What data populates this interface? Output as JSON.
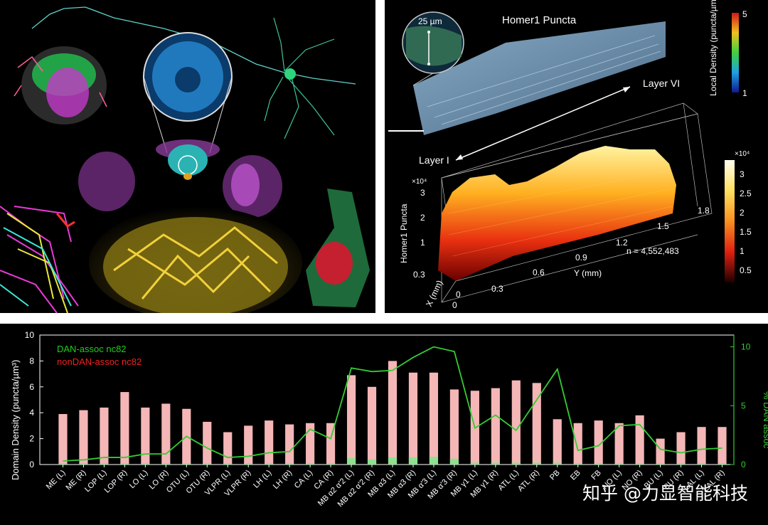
{
  "panel_b": {
    "scale_bar_label": "25 µm",
    "title": "Homer1 Puncta",
    "layer_vi": "Layer VI",
    "layer_i": "Layer I",
    "colorbar1_label": "Local Density (puncta/µm³)",
    "colorbar1_max": "5",
    "colorbar1_min": "1",
    "colorbar2_exp": "×10⁴",
    "colorbar2_ticks": [
      "3",
      "2.5",
      "2",
      "1.5",
      "1",
      "0.5"
    ],
    "z_label": "Homer1 Puncta",
    "z_exp": "×10⁴",
    "z_ticks": [
      "3",
      "2",
      "1"
    ],
    "x_label": "X (mm)",
    "x_ticks": [
      "0.3",
      "0"
    ],
    "y_label": "Y (mm)",
    "y_ticks": [
      "0",
      "0.3",
      "0.6",
      "0.9",
      "1.2",
      "1.5",
      "1.8"
    ],
    "n_label": "n = 4,552,483"
  },
  "watermark": "知乎 @力显智能科技",
  "chart_data": {
    "type": "bar",
    "ylabel": "Domain Density (puncta/µm³)",
    "y2label": "% DAN assoc",
    "ylim": [
      0,
      10
    ],
    "y_ticks": [
      0,
      2,
      4,
      6,
      8,
      10
    ],
    "y2lim": [
      0,
      11
    ],
    "y2_ticks": [
      0,
      5,
      10
    ],
    "legend_position": "top-left",
    "categories": [
      "ME (L)",
      "ME (R)",
      "LOP (L)",
      "LOP (R)",
      "LO (L)",
      "LO (R)",
      "OTU (L)",
      "OTU (R)",
      "VLPR (L)",
      "VLPR (R)",
      "LH (L)",
      "LH (R)",
      "CA (L)",
      "CA (R)",
      "MB α2 α'2 (L)",
      "MB α2 α'2 (R)",
      "MB α3 (L)",
      "MB α3 (R)",
      "MB α'3 (L)",
      "MB α'3 (R)",
      "MB γ1 (L)",
      "MB γ1 (R)",
      "ATL (L)",
      "ATL (R)",
      "PB",
      "EB",
      "FB",
      "NO (L)",
      "NO (R)",
      "BU (L)",
      "BU (R)",
      "LAL (L)",
      "LAL (R)"
    ],
    "series": [
      {
        "name": "nonDAN-assoc nc82",
        "color": "#f4b6b6",
        "type": "bar",
        "values": [
          3.9,
          4.2,
          4.4,
          5.6,
          4.4,
          4.7,
          4.3,
          3.3,
          2.5,
          3.0,
          3.4,
          3.1,
          3.2,
          3.2,
          6.9,
          6.0,
          8.0,
          7.1,
          7.1,
          5.8,
          5.7,
          5.9,
          6.5,
          6.3,
          3.5,
          3.2,
          3.4,
          3.2,
          3.8,
          2.0,
          2.5,
          2.9,
          2.9
        ]
      },
      {
        "name": "DAN-assoc nc82",
        "color": "#8fe08f",
        "type": "bar",
        "values": [
          0.1,
          0.1,
          0.1,
          0.1,
          0.1,
          0.1,
          0.1,
          0.1,
          0.1,
          0.1,
          0.1,
          0.1,
          0.1,
          0.1,
          0.5,
          0.4,
          0.55,
          0.55,
          0.6,
          0.45,
          0.15,
          0.15,
          0.15,
          0.15,
          0.15,
          0.1,
          0.1,
          0.1,
          0.1,
          0.1,
          0.1,
          0.1,
          0.1
        ]
      },
      {
        "name": "% DAN assoc",
        "color": "#33cc33",
        "type": "line",
        "axis": "right",
        "values": [
          0.3,
          0.4,
          0.6,
          0.6,
          0.9,
          0.9,
          2.4,
          1.4,
          0.6,
          0.7,
          1.0,
          1.1,
          3.0,
          2.2,
          8.2,
          7.9,
          8.0,
          9.1,
          10.0,
          9.6,
          3.1,
          4.2,
          2.9,
          5.5,
          8.1,
          1.2,
          1.6,
          3.3,
          3.4,
          1.3,
          1.0,
          1.3,
          1.4
        ]
      }
    ],
    "legend": [
      {
        "label": "DAN-assoc nc82",
        "color": "#22cc22"
      },
      {
        "label": "nonDAN-assoc nc82",
        "color": "#ee2222"
      }
    ]
  }
}
